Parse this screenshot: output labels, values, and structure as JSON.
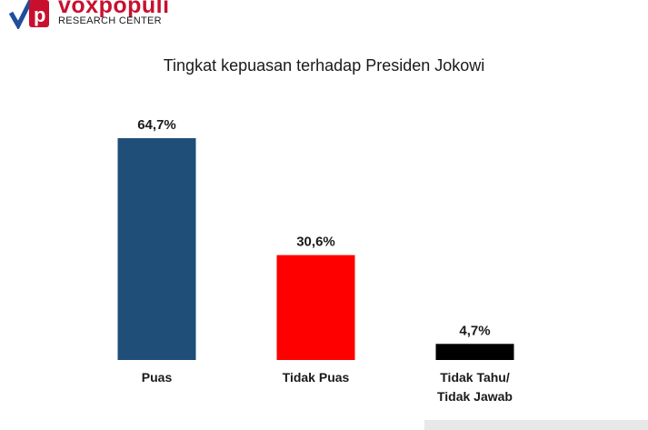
{
  "logo": {
    "name": "voxpopuli",
    "subtitle": "RESEARCH CENTER"
  },
  "chart_data": {
    "type": "bar",
    "title": "Tingkat kepuasan terhadap Presiden Jokowi",
    "categories": [
      "Puas",
      "Tidak Puas",
      "Tidak Tahu/\nTidak Jawab"
    ],
    "values": [
      64.7,
      30.6,
      4.7
    ],
    "value_labels": [
      "64,7%",
      "30,6%",
      "4,7%"
    ],
    "colors": [
      "#1f4e79",
      "#ff0000",
      "#000000"
    ],
    "xlabel": "",
    "ylabel": "",
    "ylim": [
      0,
      64.7
    ],
    "grid": false,
    "legend": "none"
  }
}
